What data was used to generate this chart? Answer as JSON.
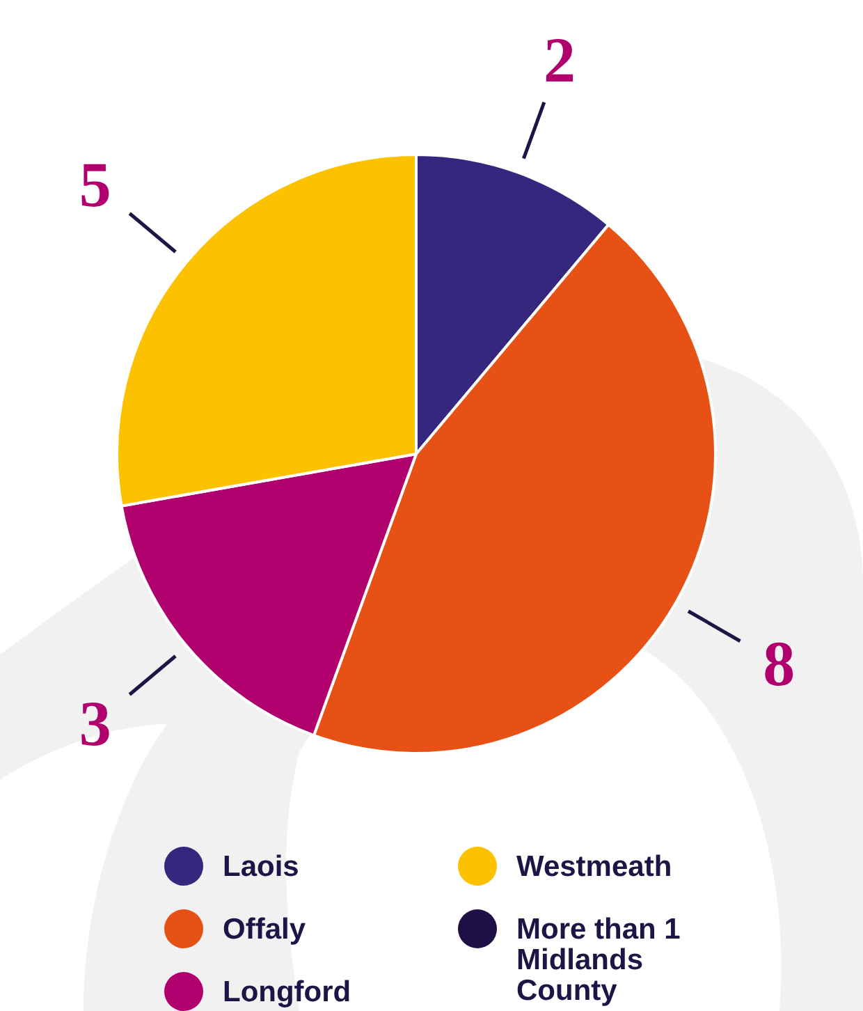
{
  "chart_data": {
    "type": "pie",
    "categories": [
      "Laois",
      "Offaly",
      "Longford",
      "Westmeath",
      "More than 1 Midlands County"
    ],
    "values": [
      2,
      8,
      3,
      5,
      0
    ],
    "colors": [
      "#35277d",
      "#e85116",
      "#b0006d",
      "#fcc200",
      "#1e0f45"
    ],
    "data_labels": true,
    "legend": "bottom"
  }
}
